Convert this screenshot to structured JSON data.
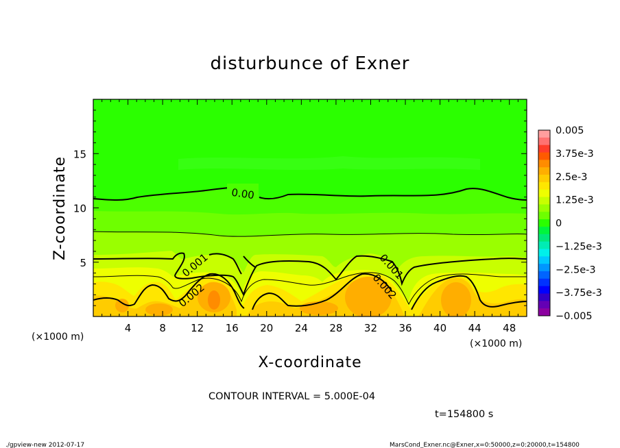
{
  "chart_data": {
    "type": "heatmap",
    "title": "disturbunce of Exner",
    "xlabel": "X-coordinate",
    "ylabel": "Z-coordinate",
    "x_unit": "(×1000 m)",
    "x_ticks": [
      4,
      8,
      12,
      16,
      20,
      24,
      28,
      32,
      36,
      40,
      44,
      48
    ],
    "y_ticks": [
      5,
      10,
      15
    ],
    "xlim": [
      0,
      50
    ],
    "ylim": [
      0,
      20
    ],
    "contour_interval_text": "CONTOUR INTERVAL = 5.000E-04",
    "time_text": "t=154800 s",
    "contour_labels": [
      {
        "text": "0.00",
        "x": 17.5,
        "z": 10.9
      },
      {
        "text": "0.001",
        "x": 11.7,
        "z": 4.6
      },
      {
        "text": "0.001",
        "x": 34.8,
        "z": 4.4
      },
      {
        "text": "0.002",
        "x": 11.0,
        "z": 1.8
      },
      {
        "text": "0.002",
        "x": 33.0,
        "z": 2.3
      }
    ],
    "colorbar": {
      "labels": [
        "0.005",
        "3.75e-3",
        "2.5e-3",
        "1.25e-3",
        "0",
        "−1.25e-3",
        "−2.5e-3",
        "−3.75e-3",
        "−0.005"
      ],
      "bands": [
        "#ff9e9e",
        "#ff7272",
        "#ff3d2b",
        "#ff5a00",
        "#ff8c00",
        "#ffae00",
        "#ffcc00",
        "#ffe600",
        "#eeff00",
        "#c8ff00",
        "#9aff00",
        "#6eff00",
        "#2bff00",
        "#00f53d",
        "#00e87a",
        "#00ecb4",
        "#00f0ea",
        "#00c8ff",
        "#0096ff",
        "#0064ff",
        "#0032ff",
        "#0000ff",
        "#3200c8",
        "#6400b4",
        "#8c00a0"
      ]
    }
  },
  "footer": {
    "left": "./gpview-new   2012-07-17",
    "right": "MarsCond_Exner.nc@Exner,x=0:50000,z=0:20000,t=154800"
  }
}
